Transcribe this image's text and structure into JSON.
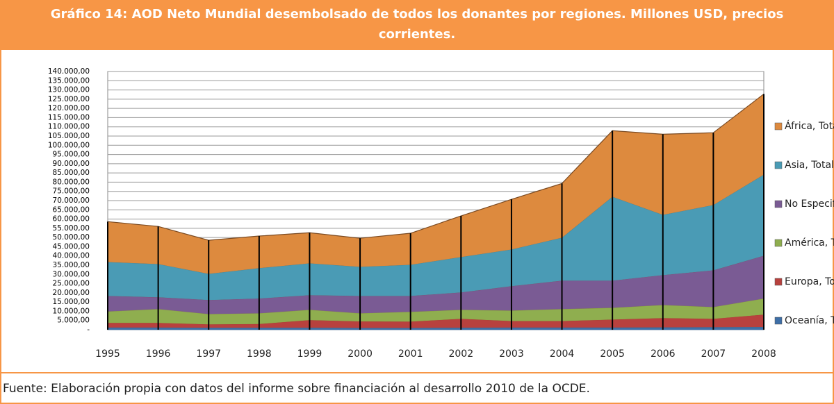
{
  "chart_data": {
    "type": "stacked_area",
    "title": "Gráfico 14: AOD Neto Mundial  desembolsado de todos los donantes por regiones. Millones USD, precios corrientes.",
    "source": "Fuente: Elaboración propia con datos del informe sobre financiación al desarrollo 2010 de la OCDE.",
    "categories": [
      "1995",
      "1996",
      "1997",
      "1998",
      "1999",
      "2000",
      "2001",
      "2002",
      "2003",
      "2004",
      "2005",
      "2006",
      "2007",
      "2008"
    ],
    "series": [
      {
        "name": "Oceanía, Total",
        "color": "#3e6fa7",
        "values": [
          1300,
          1300,
          1200,
          1200,
          1200,
          1100,
          1100,
          1200,
          1300,
          1300,
          1300,
          1400,
          1500,
          1600
        ]
      },
      {
        "name": "Europa, Total",
        "color": "#b8413e",
        "values": [
          2500,
          2500,
          1800,
          2000,
          4100,
          3500,
          3400,
          4800,
          3500,
          3500,
          4300,
          5000,
          4500,
          6700
        ]
      },
      {
        "name": "América, Total",
        "color": "#8fae4f",
        "values": [
          6200,
          7500,
          5600,
          5800,
          5600,
          4400,
          5300,
          4900,
          5700,
          6500,
          6400,
          7100,
          6400,
          8700
        ]
      },
      {
        "name": "No Especificado",
        "color": "#7a5b94",
        "values": [
          8400,
          6400,
          7600,
          8000,
          7900,
          9400,
          8600,
          9400,
          13200,
          15400,
          14700,
          16200,
          19900,
          23200
        ]
      },
      {
        "name": "Asia, Total",
        "color": "#4a9bb5",
        "values": [
          18400,
          18000,
          14200,
          16500,
          17300,
          15800,
          16900,
          19200,
          19900,
          23300,
          45500,
          32700,
          35400,
          44000
        ]
      },
      {
        "name": "África, Total",
        "color": "#dd8a3e",
        "values": [
          21800,
          20300,
          18100,
          17300,
          16500,
          15400,
          17000,
          22200,
          27100,
          29300,
          35700,
          43600,
          39100,
          43600
        ]
      }
    ],
    "ylim": [
      0,
      140000
    ],
    "yticks": [
      {
        "value": 0,
        "label": "-"
      },
      {
        "value": 5000,
        "label": "5.000,00"
      },
      {
        "value": 10000,
        "label": "10.000,00"
      },
      {
        "value": 15000,
        "label": "15.000,00"
      },
      {
        "value": 20000,
        "label": "20.000,00"
      },
      {
        "value": 25000,
        "label": "25.000,00"
      },
      {
        "value": 30000,
        "label": "30.000,00"
      },
      {
        "value": 35000,
        "label": "35.000,00"
      },
      {
        "value": 40000,
        "label": "40.000,00"
      },
      {
        "value": 45000,
        "label": "45.000,00"
      },
      {
        "value": 50000,
        "label": "50.000,00"
      },
      {
        "value": 55000,
        "label": "55.000,00"
      },
      {
        "value": 60000,
        "label": "60.000,00"
      },
      {
        "value": 65000,
        "label": "65.000,00"
      },
      {
        "value": 70000,
        "label": "70.000,00"
      },
      {
        "value": 75000,
        "label": "75.000,00"
      },
      {
        "value": 80000,
        "label": "80.000,00"
      },
      {
        "value": 85000,
        "label": "85.000,00"
      },
      {
        "value": 90000,
        "label": "90.000,00"
      },
      {
        "value": 95000,
        "label": "95.000,00"
      },
      {
        "value": 100000,
        "label": "100.000,00"
      },
      {
        "value": 105000,
        "label": "105.000,00"
      },
      {
        "value": 110000,
        "label": "110.000,00"
      },
      {
        "value": 115000,
        "label": "115.000,00"
      },
      {
        "value": 120000,
        "label": "120.000,00"
      },
      {
        "value": 125000,
        "label": "125.000,00"
      },
      {
        "value": 130000,
        "label": "130.000,00"
      },
      {
        "value": 135000,
        "label": "135.000,00"
      },
      {
        "value": 140000,
        "label": "140.000,00"
      }
    ],
    "grid": true
  }
}
